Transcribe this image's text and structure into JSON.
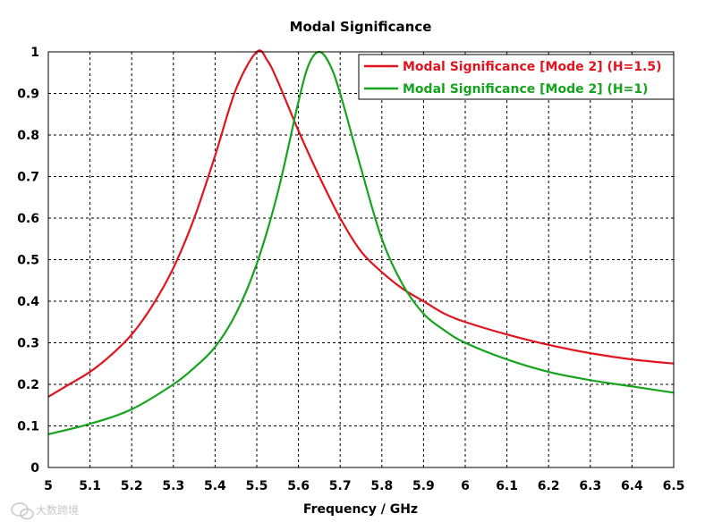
{
  "chart_data": {
    "type": "line",
    "title": "Modal Significance",
    "xlabel": "Frequency / GHz",
    "ylabel": "",
    "xlim": [
      5,
      6.5
    ],
    "ylim": [
      0,
      1
    ],
    "x_ticks": [
      "5",
      "5.1",
      "5.2",
      "5.3",
      "5.4",
      "5.5",
      "5.6",
      "5.7",
      "5.8",
      "5.9",
      "6",
      "6.1",
      "6.2",
      "6.3",
      "6.4",
      "6.5"
    ],
    "y_ticks": [
      "0",
      "0.1",
      "0.2",
      "0.3",
      "0.4",
      "0.5",
      "0.6",
      "0.7",
      "0.8",
      "0.9",
      "1"
    ],
    "grid": true,
    "legend_position": "top-right",
    "series": [
      {
        "name": "Modal Significance [Mode 2] (H=1.5)",
        "color": "#e0141e",
        "x": [
          5.0,
          5.05,
          5.1,
          5.15,
          5.2,
          5.25,
          5.3,
          5.35,
          5.4,
          5.45,
          5.5,
          5.525,
          5.55,
          5.6,
          5.65,
          5.7,
          5.75,
          5.8,
          5.85,
          5.9,
          5.95,
          6.0,
          6.1,
          6.2,
          6.3,
          6.4,
          6.5
        ],
        "y": [
          0.17,
          0.2,
          0.23,
          0.27,
          0.32,
          0.39,
          0.48,
          0.6,
          0.75,
          0.91,
          1.0,
          0.98,
          0.93,
          0.81,
          0.7,
          0.6,
          0.52,
          0.47,
          0.43,
          0.4,
          0.37,
          0.35,
          0.32,
          0.295,
          0.275,
          0.26,
          0.25
        ]
      },
      {
        "name": "Modal Significance [Mode 2] (H=1)",
        "color": "#16a31e",
        "x": [
          5.0,
          5.1,
          5.2,
          5.3,
          5.35,
          5.4,
          5.45,
          5.5,
          5.55,
          5.6,
          5.625,
          5.65,
          5.675,
          5.7,
          5.75,
          5.8,
          5.85,
          5.9,
          5.95,
          6.0,
          6.1,
          6.2,
          6.3,
          6.4,
          6.5
        ],
        "y": [
          0.08,
          0.105,
          0.14,
          0.2,
          0.24,
          0.29,
          0.37,
          0.49,
          0.66,
          0.88,
          0.97,
          1.0,
          0.97,
          0.9,
          0.72,
          0.55,
          0.44,
          0.37,
          0.33,
          0.3,
          0.26,
          0.23,
          0.21,
          0.195,
          0.18
        ]
      }
    ]
  },
  "watermark": {
    "text": "大数跨境",
    "icon": "wechat-bubble-icon"
  }
}
